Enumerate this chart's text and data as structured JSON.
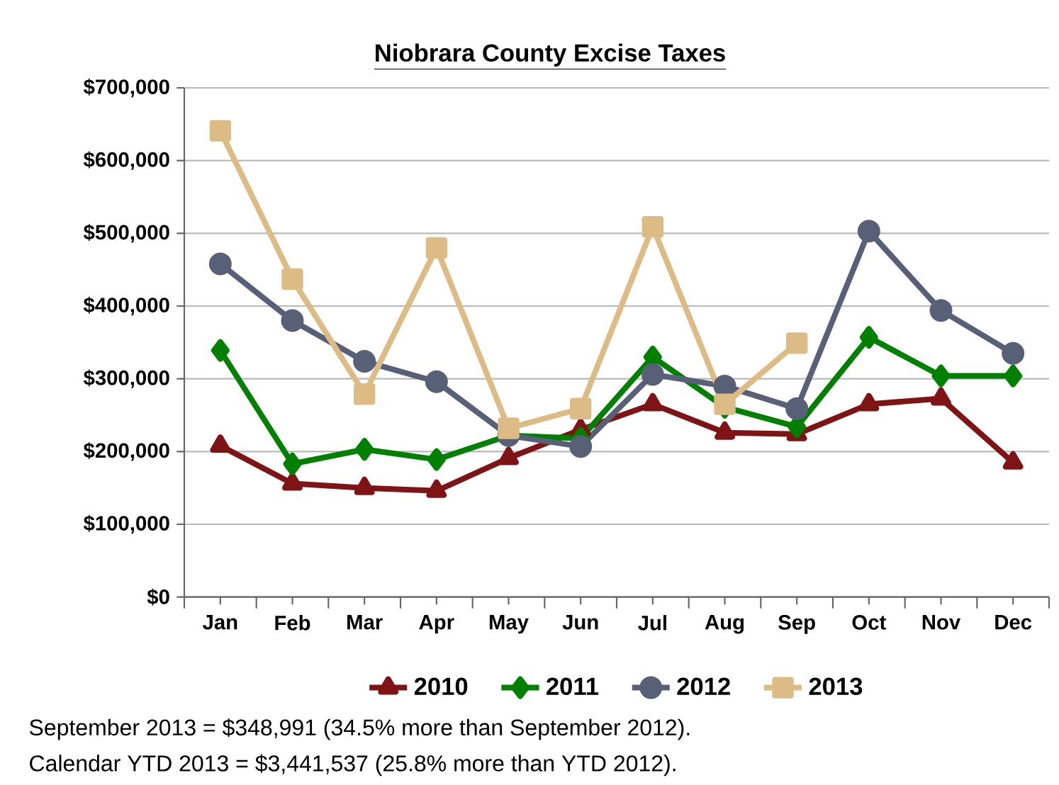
{
  "chart_data": {
    "type": "line",
    "title": "Niobrara County Excise Taxes",
    "categories": [
      "Jan",
      "Feb",
      "Mar",
      "Apr",
      "May",
      "Jun",
      "Jul",
      "Aug",
      "Sep",
      "Oct",
      "Nov",
      "Dec"
    ],
    "series": [
      {
        "name": "2010",
        "color": "#7f1416",
        "marker": "triangle",
        "values": [
          208000,
          156000,
          150000,
          146000,
          191000,
          230000,
          265000,
          226000,
          224000,
          265000,
          273000,
          185000
        ]
      },
      {
        "name": "2011",
        "color": "#008000",
        "marker": "diamond",
        "values": [
          339000,
          183000,
          203000,
          189000,
          222000,
          218000,
          330000,
          261000,
          234000,
          357000,
          304000,
          304000
        ]
      },
      {
        "name": "2012",
        "color": "#586078",
        "marker": "circle",
        "values": [
          458000,
          380000,
          324000,
          296000,
          222000,
          207000,
          306000,
          290000,
          259000,
          503000,
          394000,
          335000
        ]
      },
      {
        "name": "2013",
        "color": "#dcbb84",
        "marker": "square",
        "values": [
          641000,
          437000,
          279000,
          480000,
          232000,
          259000,
          509000,
          265000,
          349000,
          null,
          null,
          null
        ]
      }
    ],
    "ylim": [
      0,
      700000
    ],
    "yticks": [
      {
        "value": 0,
        "label": "$0"
      },
      {
        "value": 100000,
        "label": "$100,000"
      },
      {
        "value": 200000,
        "label": "$200,000"
      },
      {
        "value": 300000,
        "label": "$300,000"
      },
      {
        "value": 400000,
        "label": "$400,000"
      },
      {
        "value": 500000,
        "label": "$500,000"
      },
      {
        "value": 600000,
        "label": "$600,000"
      },
      {
        "value": 700000,
        "label": "$700,000"
      }
    ],
    "grid": "y",
    "legend": "bottom",
    "annotations": [
      "September 2013 = $348,991 (34.5% more than September 2012).",
      "Calendar YTD 2013 = $3,441,537 (25.8% more than YTD 2012)."
    ]
  }
}
